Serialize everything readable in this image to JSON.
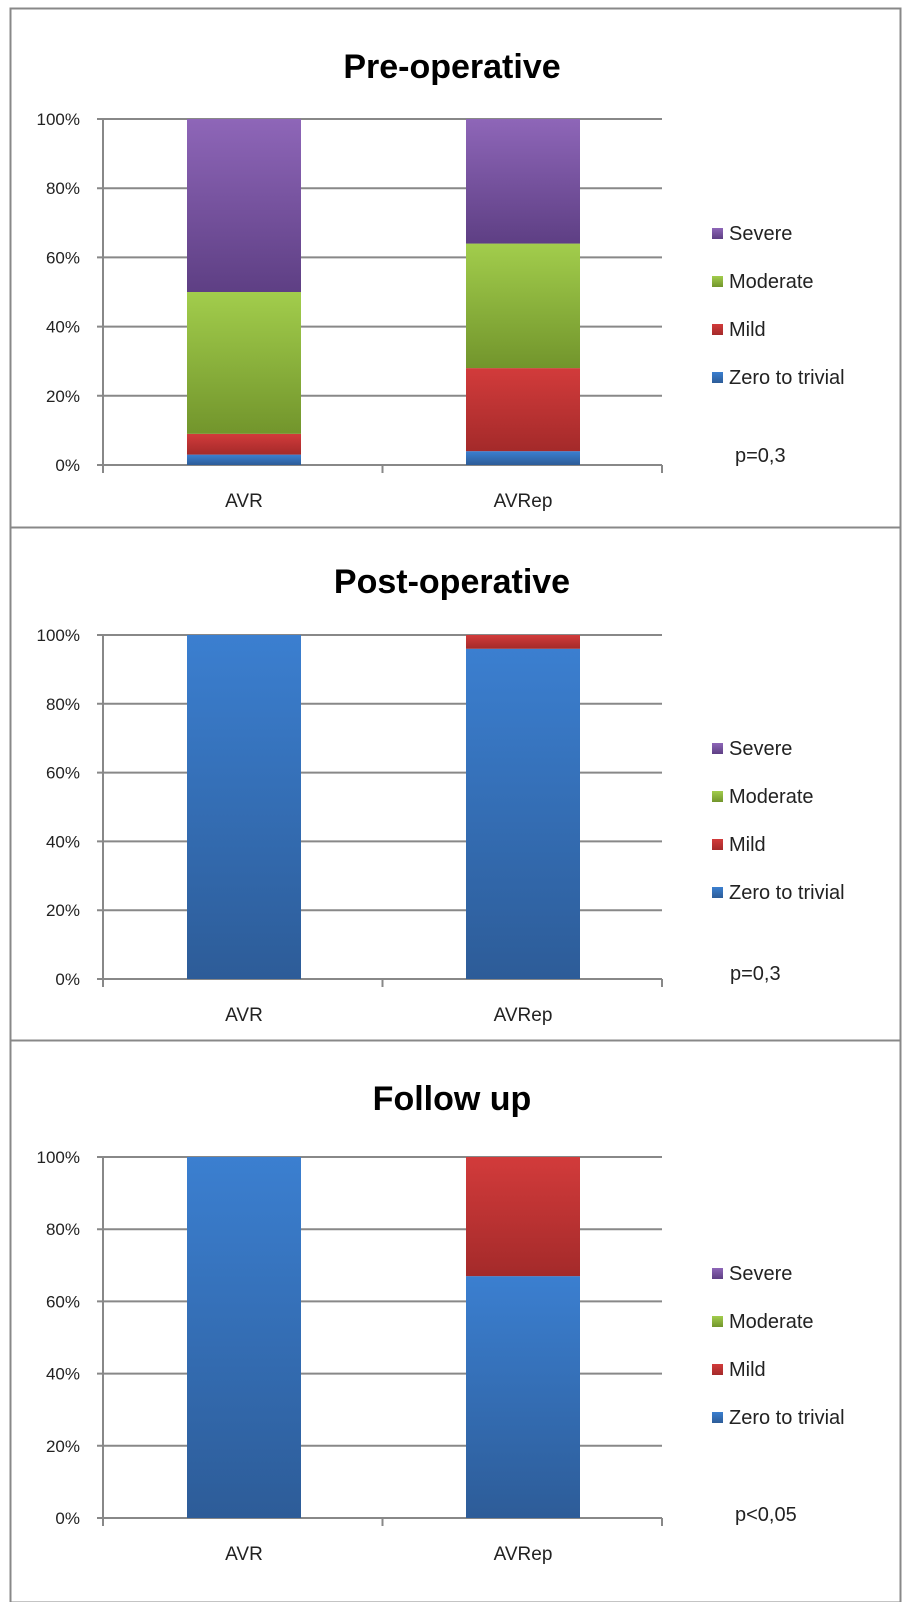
{
  "chart_data": [
    {
      "type": "bar",
      "stacked": true,
      "percent": true,
      "title": "Pre-operative",
      "categories": [
        "AVR",
        "AVRep"
      ],
      "ylim": [
        0,
        100
      ],
      "yticks": [
        "0%",
        "20%",
        "40%",
        "60%",
        "80%",
        "100%"
      ],
      "series": [
        {
          "name": "Zero to trivial",
          "values": [
            3,
            4
          ]
        },
        {
          "name": "Mild",
          "values": [
            6,
            24
          ]
        },
        {
          "name": "Moderate",
          "values": [
            41,
            36
          ]
        },
        {
          "name": "Severe",
          "values": [
            50,
            36
          ]
        }
      ],
      "annotation": "p=0,3",
      "grid": true,
      "legend": "right"
    },
    {
      "type": "bar",
      "stacked": true,
      "percent": true,
      "title": "Post-operative",
      "categories": [
        "AVR",
        "AVRep"
      ],
      "ylim": [
        0,
        100
      ],
      "yticks": [
        "0%",
        "20%",
        "40%",
        "60%",
        "80%",
        "100%"
      ],
      "series": [
        {
          "name": "Zero to trivial",
          "values": [
            100,
            96
          ]
        },
        {
          "name": "Mild",
          "values": [
            0,
            4
          ]
        },
        {
          "name": "Moderate",
          "values": [
            0,
            0
          ]
        },
        {
          "name": "Severe",
          "values": [
            0,
            0
          ]
        }
      ],
      "annotation": "p=0,3",
      "grid": true,
      "legend": "right"
    },
    {
      "type": "bar",
      "stacked": true,
      "percent": true,
      "title": "Follow up",
      "categories": [
        "AVR",
        "AVRep"
      ],
      "ylim": [
        0,
        100
      ],
      "yticks": [
        "0%",
        "20%",
        "40%",
        "60%",
        "80%",
        "100%"
      ],
      "series": [
        {
          "name": "Zero to trivial",
          "values": [
            100,
            67
          ]
        },
        {
          "name": "Mild",
          "values": [
            0,
            33
          ]
        },
        {
          "name": "Moderate",
          "values": [
            0,
            0
          ]
        },
        {
          "name": "Severe",
          "values": [
            0,
            0
          ]
        }
      ],
      "annotation": "p<0,05",
      "grid": true,
      "legend": "right"
    }
  ],
  "colors": {
    "Zero to trivial": [
      "#3b7fd0",
      "#2d5c98"
    ],
    "Mild": [
      "#d23b3b",
      "#a42a2a"
    ],
    "Moderate": [
      "#a2cd4c",
      "#72952c"
    ],
    "Severe": [
      "#8e66b8",
      "#5e3f84"
    ],
    "grid": "#888888",
    "frame": "#888888"
  }
}
